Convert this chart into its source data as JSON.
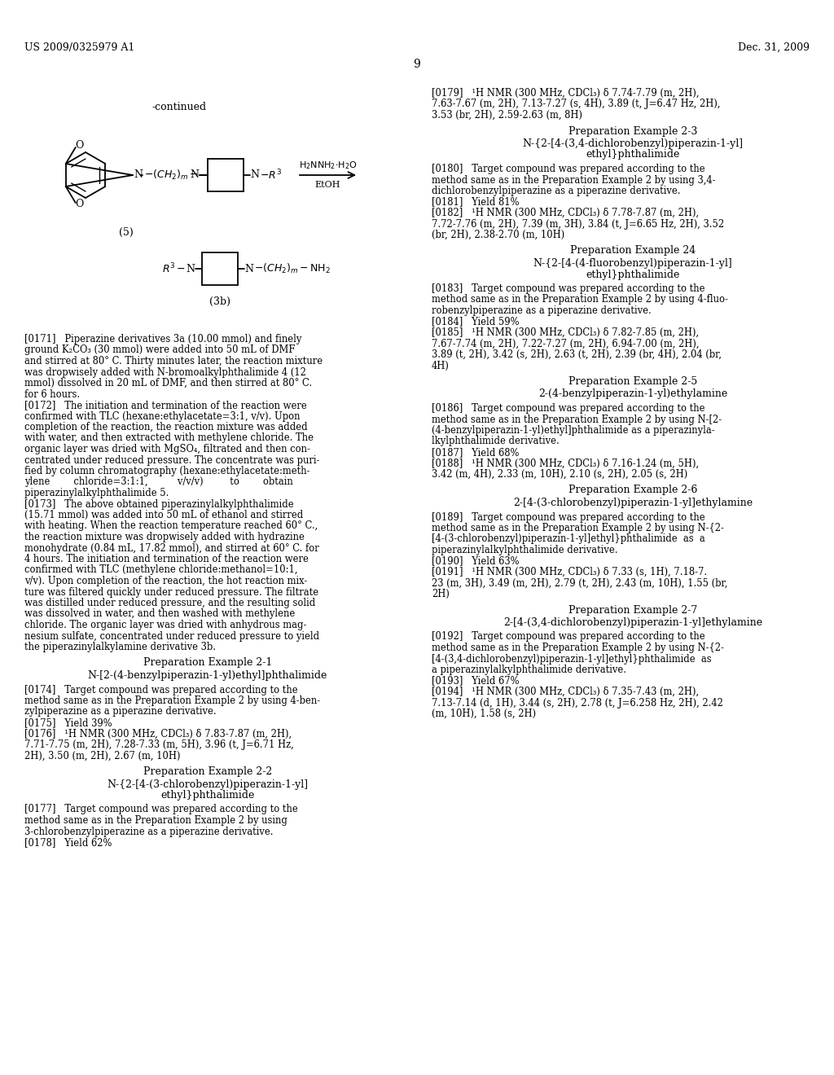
{
  "page_header_left": "US 2009/0325979 A1",
  "page_header_right": "Dec. 31, 2009",
  "page_number": "9",
  "background_color": "#ffffff",
  "text_color": "#000000",
  "figsize": [
    10.24,
    13.2
  ],
  "dpi": 100
}
